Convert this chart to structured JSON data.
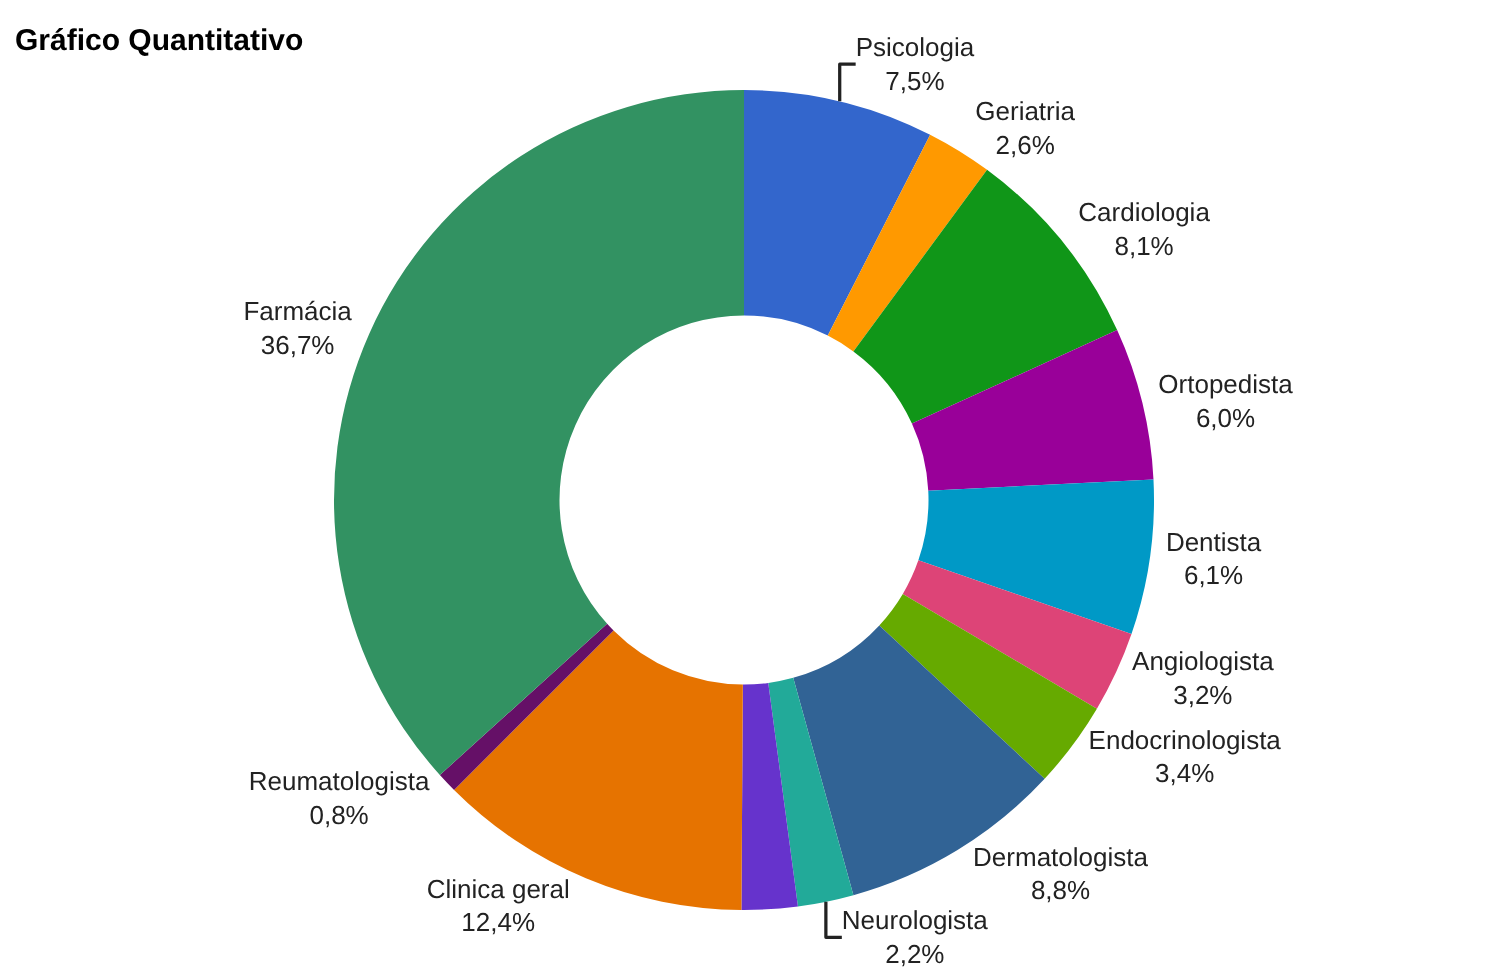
{
  "chart_data": {
    "type": "donut",
    "title": "Gráfico Quantitativo",
    "categories": [
      "Psicologia",
      "Geriatria",
      "Cardiologia",
      "Ortopedista",
      "Dentista",
      "Angiologista",
      "Endocrinologista",
      "Dermatologista",
      "Neurologista",
      null,
      "Clinica geral",
      "Reumatologista",
      "Farmácia"
    ],
    "values": [
      7.5,
      2.6,
      8.1,
      6.0,
      6.1,
      3.2,
      3.4,
      8.8,
      2.2,
      2.2,
      12.4,
      0.8,
      36.7
    ],
    "value_labels": [
      "7,5%",
      "2,6%",
      "8,1%",
      "6,0%",
      "6,1%",
      "3,2%",
      "3,4%",
      "8,8%",
      "2,2%",
      null,
      "12,4%",
      "0,8%",
      "36,7%"
    ],
    "colors": [
      "#3366cc",
      "#ff9900",
      "#109618",
      "#990099",
      "#0099c6",
      "#dd4477",
      "#66aa00",
      "#316395",
      "#22aa99",
      "#6633cc",
      "#e67300",
      "#651067",
      "#329262"
    ],
    "legend": false
  }
}
